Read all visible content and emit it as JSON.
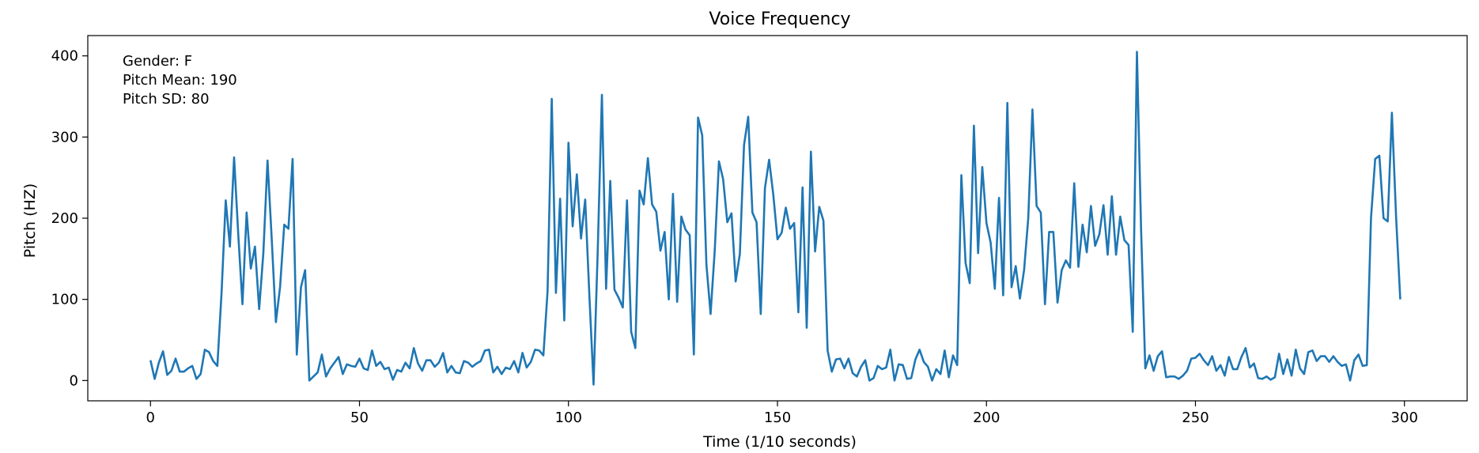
{
  "chart_data": {
    "type": "line",
    "title": "Voice Frequency",
    "xlabel": "Time (1/10 seconds)",
    "ylabel": "Pitch (HZ)",
    "xlim": [
      -15,
      315
    ],
    "ylim": [
      -25,
      425
    ],
    "xticks": [
      0,
      50,
      100,
      150,
      200,
      250,
      300
    ],
    "yticks": [
      0,
      100,
      200,
      300,
      400
    ],
    "grid": false,
    "line_color": "#1f77b4",
    "annotations": [
      "Gender: F",
      "Pitch Mean: 190",
      "Pitch SD: 80"
    ],
    "y": [
      25,
      2,
      22,
      36,
      7,
      12,
      27,
      11,
      11,
      15,
      18,
      2,
      8,
      38,
      35,
      24,
      18,
      108,
      222,
      165,
      275,
      180,
      94,
      207,
      138,
      165,
      88,
      157,
      271,
      175,
      72,
      115,
      192,
      187,
      273,
      32,
      115,
      136,
      0,
      5,
      10,
      32,
      5,
      15,
      22,
      29,
      8,
      20,
      18,
      17,
      27,
      15,
      13,
      37,
      18,
      23,
      14,
      16,
      1,
      13,
      11,
      22,
      15,
      40,
      21,
      12,
      25,
      25,
      17,
      22,
      34,
      10,
      18,
      10,
      9,
      24,
      22,
      17,
      21,
      24,
      37,
      38,
      10,
      17,
      8,
      16,
      14,
      24,
      10,
      34,
      16,
      23,
      38,
      37,
      31,
      110,
      347,
      108,
      224,
      74,
      293,
      190,
      254,
      175,
      223,
      105,
      -5,
      160,
      352,
      113,
      246,
      112,
      102,
      90,
      222,
      60,
      40,
      234,
      217,
      274,
      217,
      208,
      160,
      183,
      100,
      230,
      97,
      202,
      186,
      179,
      32,
      324,
      302,
      143,
      82,
      161,
      270,
      248,
      195,
      206,
      122,
      156,
      290,
      325,
      207,
      195,
      82,
      237,
      272,
      229,
      174,
      182,
      213,
      187,
      194,
      84,
      238,
      65,
      282,
      159,
      214,
      197,
      37,
      11,
      26,
      27,
      15,
      27,
      9,
      5,
      17,
      25,
      0,
      3,
      18,
      14,
      16,
      38,
      0,
      20,
      19,
      2,
      3,
      26,
      38,
      23,
      17,
      0,
      14,
      8,
      37,
      4,
      31,
      19,
      253,
      145,
      120,
      314,
      157,
      263,
      194,
      170,
      113,
      225,
      105,
      342,
      115,
      141,
      101,
      136,
      200,
      334,
      215,
      207,
      94,
      183,
      183,
      96,
      136,
      148,
      139,
      243,
      140,
      192,
      158,
      215,
      166,
      180,
      216,
      155,
      227,
      155,
      202,
      173,
      167,
      60,
      405,
      185,
      15,
      31,
      12,
      30,
      36,
      4,
      5,
      5,
      2,
      6,
      12,
      27,
      28,
      33,
      25,
      19,
      30,
      12,
      19,
      6,
      29,
      14,
      14,
      29,
      40,
      16,
      21,
      3,
      2,
      5,
      1,
      4,
      33,
      8,
      26,
      6,
      38,
      15,
      8,
      35,
      37,
      24,
      30,
      30,
      23,
      30,
      23,
      18,
      20,
      0,
      25,
      32,
      18,
      19,
      200,
      273,
      277,
      200,
      196,
      330,
      202,
      100
    ]
  }
}
